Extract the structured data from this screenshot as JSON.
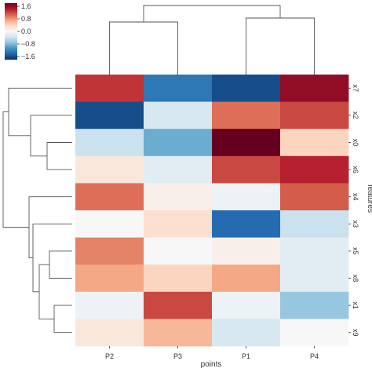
{
  "chart_data": {
    "type": "heatmap",
    "title": "",
    "xlabel": "points",
    "ylabel": "features",
    "columns": [
      "P2",
      "P3",
      "P1",
      "P4"
    ],
    "rows": [
      "x7",
      "x2",
      "x0",
      "x6",
      "x4",
      "x3",
      "x5",
      "x8",
      "x1",
      "x9"
    ],
    "values": [
      [
        1.3,
        -1.3,
        -1.6,
        1.6
      ],
      [
        -1.6,
        -0.3,
        1.0,
        1.2
      ],
      [
        -0.4,
        -0.9,
        1.8,
        0.4
      ],
      [
        0.2,
        -0.2,
        1.2,
        1.4
      ],
      [
        1.0,
        0.1,
        -0.1,
        1.1
      ],
      [
        0.0,
        0.3,
        -1.4,
        -0.4
      ],
      [
        0.9,
        0.0,
        0.1,
        -0.2
      ],
      [
        0.7,
        0.4,
        0.7,
        -0.2
      ],
      [
        -0.1,
        1.2,
        -0.1,
        -0.7
      ],
      [
        0.2,
        0.6,
        -0.3,
        0.0
      ]
    ],
    "colorbar": {
      "colormap": "RdBu_r",
      "vmin": -1.8,
      "vmax": 1.8,
      "ticks": [
        1.6,
        0.8,
        0.0,
        -0.8,
        -1.6
      ],
      "tick_labels": [
        "1.6",
        "0.8",
        "0.0",
        "−0.8",
        "−1.6"
      ]
    },
    "col_dendrogram": true,
    "row_dendrogram": true
  }
}
